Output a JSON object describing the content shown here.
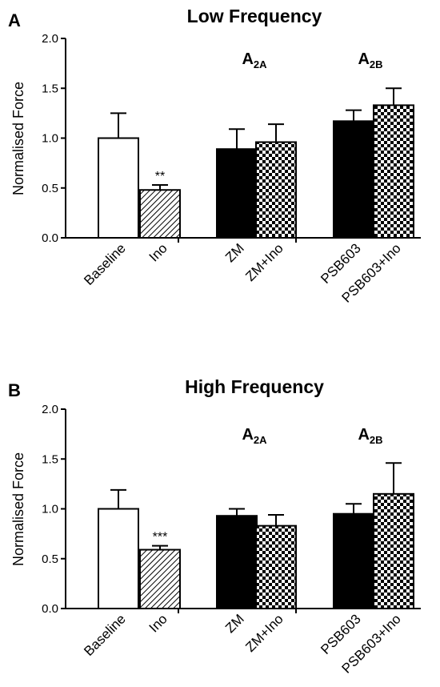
{
  "chart_data": [
    {
      "panel": "A",
      "type": "bar",
      "title": "Low Frequency",
      "ylabel": "Normalised Force",
      "xlabel": "",
      "ylim": [
        0,
        2.0
      ],
      "yticks": [
        "0.0",
        "0.5",
        "1.0",
        "1.5",
        "2.0"
      ],
      "grid": false,
      "categories": [
        "Baseline",
        "Ino",
        "ZM",
        "ZM+Ino",
        "PSB603",
        "PSB603+Ino"
      ],
      "values": [
        1.0,
        0.48,
        0.89,
        0.96,
        1.17,
        1.33
      ],
      "errors": [
        0.25,
        0.05,
        0.2,
        0.18,
        0.11,
        0.17
      ],
      "fills": [
        "white",
        "hatch",
        "black",
        "checker",
        "black",
        "checker"
      ],
      "annotations": [
        {
          "category": "Ino",
          "text": "**"
        }
      ],
      "groups": [
        {
          "main": "A",
          "sub": "2A"
        },
        {
          "main": "A",
          "sub": "2B"
        }
      ]
    },
    {
      "panel": "B",
      "type": "bar",
      "title": "High Frequency",
      "ylabel": "Normalised Force",
      "xlabel": "",
      "ylim": [
        0,
        2.0
      ],
      "yticks": [
        "0.0",
        "0.5",
        "1.0",
        "1.5",
        "2.0"
      ],
      "grid": false,
      "categories": [
        "Baseline",
        "Ino",
        "ZM",
        "ZM+Ino",
        "PSB603",
        "PSB603+Ino"
      ],
      "values": [
        1.0,
        0.59,
        0.93,
        0.83,
        0.95,
        1.15
      ],
      "errors": [
        0.19,
        0.04,
        0.07,
        0.11,
        0.1,
        0.31
      ],
      "fills": [
        "white",
        "hatch",
        "black",
        "checker",
        "black",
        "checker"
      ],
      "annotations": [
        {
          "category": "Ino",
          "text": "***"
        }
      ],
      "groups": [
        {
          "main": "A",
          "sub": "2A"
        },
        {
          "main": "A",
          "sub": "2B"
        }
      ]
    }
  ]
}
